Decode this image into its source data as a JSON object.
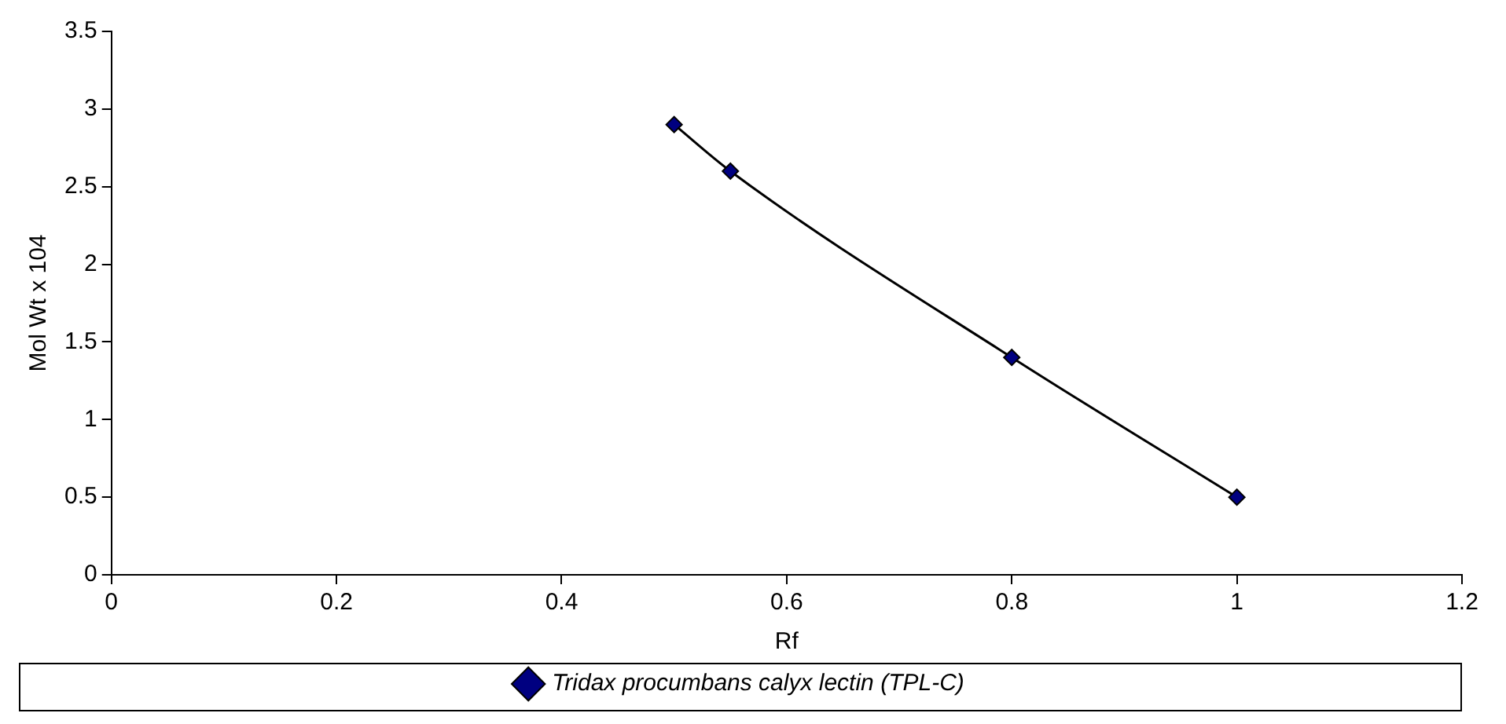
{
  "chart_data": {
    "type": "line",
    "xlabel": "Rf",
    "ylabel": "Mol Wt x 104",
    "x": [
      0.5,
      0.55,
      0.8,
      1.0
    ],
    "series": [
      {
        "name": "Tridax procumbans calyx lectin (TPL-C)",
        "color": "#000080",
        "values": [
          2.9,
          2.6,
          1.4,
          0.5
        ]
      }
    ],
    "xlim": [
      0,
      1.2
    ],
    "xticks": [
      0,
      0.2,
      0.4,
      0.6,
      0.8,
      1,
      1.2
    ],
    "ylim": [
      0,
      3.5
    ],
    "yticks": [
      0,
      0.5,
      1,
      1.5,
      2,
      2.5,
      3,
      3.5
    ],
    "grid": false,
    "legend": "bottom",
    "marker": "diamond",
    "line_style": "solid"
  }
}
